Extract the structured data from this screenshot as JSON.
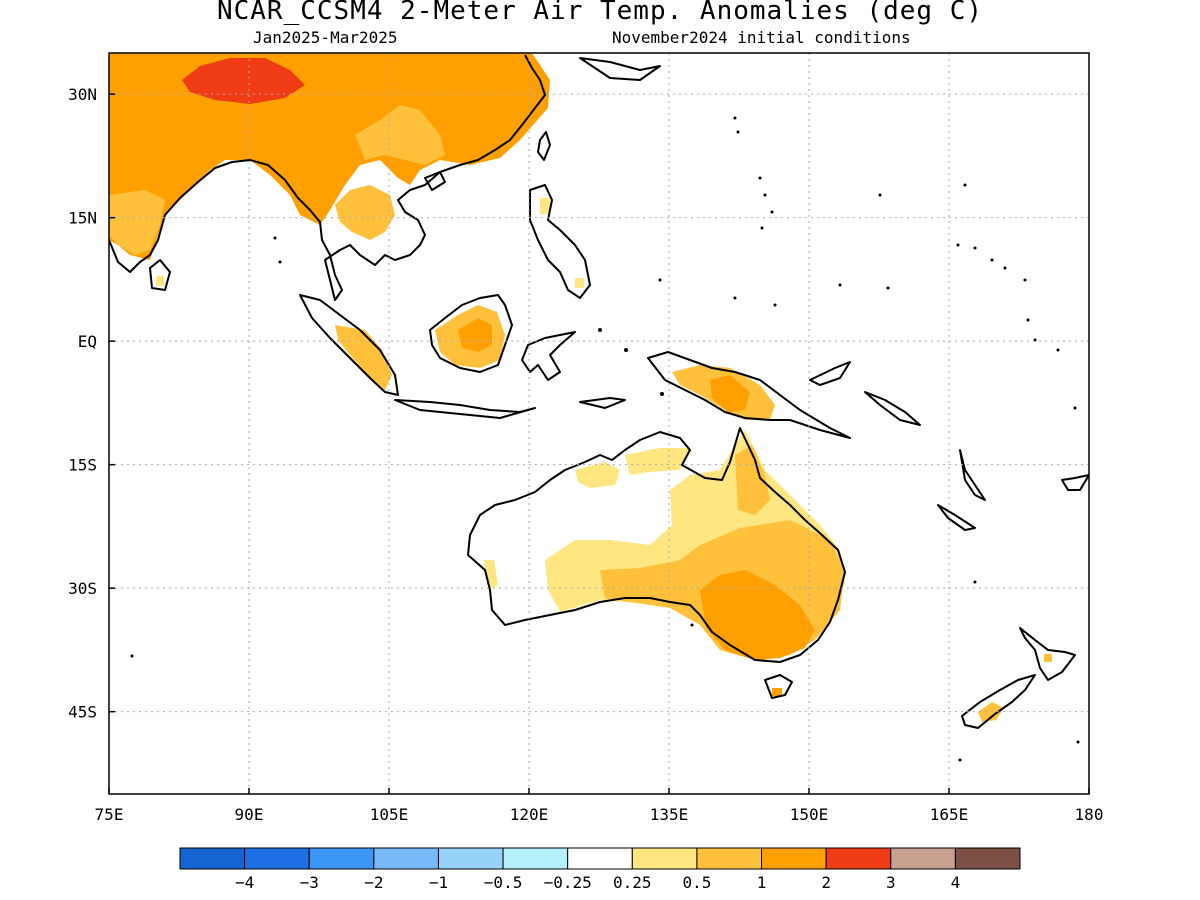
{
  "title": "NCAR_CCSM4 2-Meter Air Temp. Anomalies (deg C)",
  "subtitle_left": "Jan2025-Mar2025",
  "subtitle_right": "November2024 initial conditions",
  "map": {
    "lon_range": [
      75,
      180
    ],
    "lat_range": [
      -55,
      35
    ],
    "lon_ticks": [
      {
        "value": 75,
        "label": "75E"
      },
      {
        "value": 90,
        "label": "90E"
      },
      {
        "value": 105,
        "label": "105E"
      },
      {
        "value": 120,
        "label": "120E"
      },
      {
        "value": 135,
        "label": "135E"
      },
      {
        "value": 150,
        "label": "150E"
      },
      {
        "value": 165,
        "label": "165E"
      },
      {
        "value": 180,
        "label": "180"
      }
    ],
    "lat_ticks": [
      {
        "value": 30,
        "label": "30N"
      },
      {
        "value": 15,
        "label": "15N"
      },
      {
        "value": 0,
        "label": "EQ"
      },
      {
        "value": -15,
        "label": "15S"
      },
      {
        "value": -30,
        "label": "30S"
      },
      {
        "value": -45,
        "label": "45S"
      }
    ],
    "grid": true,
    "anomaly_colors": {
      "0.25-0.5": "#ffe680",
      "0.5-1": "#ffc03c",
      "1-2": "#ffa000",
      "2-3": "#f03c14",
      "3-4": "#c8a090"
    }
  },
  "colorbar": {
    "colors": [
      "#1464d2",
      "#1e6ee6",
      "#3c96f5",
      "#78b9fa",
      "#96d2fa",
      "#b4f0fa",
      "#ffffff",
      "#ffe680",
      "#ffc03c",
      "#ffa000",
      "#f03c14",
      "#c8a090",
      "#7d5046"
    ],
    "labels": [
      "-4",
      "-3",
      "-2",
      "-1",
      "-0.5",
      "-0.25",
      "0.25",
      "0.5",
      "1",
      "2",
      "3",
      "4"
    ]
  }
}
